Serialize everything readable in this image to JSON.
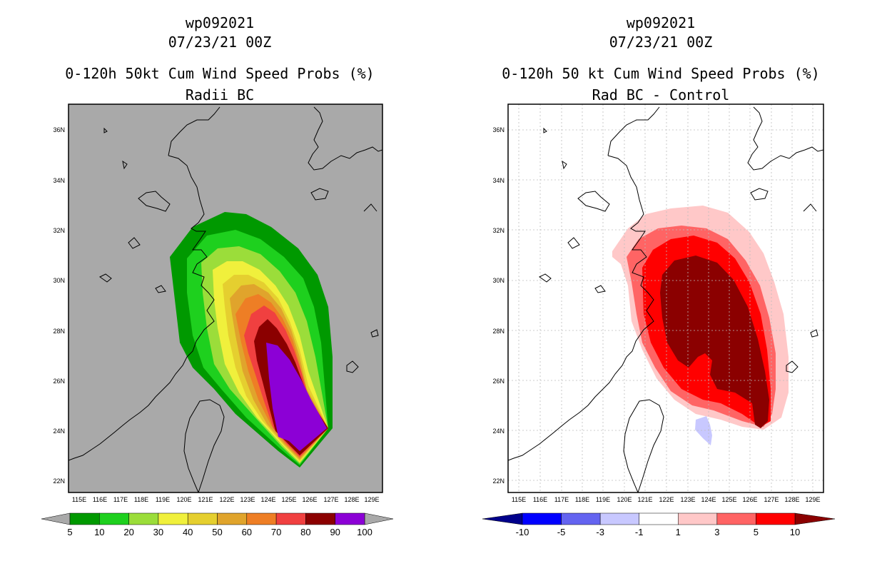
{
  "left_panel": {
    "title_lines": [
      "wp092021",
      "07/23/21 00Z",
      "0-120h 50kt Cum Wind Speed Probs (%)",
      "Radii BC"
    ],
    "lat_labels": [
      "36N",
      "34N",
      "32N",
      "30N",
      "28N",
      "26N",
      "24N",
      "22N"
    ],
    "lon_labels": [
      "115E",
      "116E",
      "117E",
      "118E",
      "119E",
      "120E",
      "121E",
      "122E",
      "123E",
      "124E",
      "125E",
      "126E",
      "127E",
      "128E",
      "129E"
    ],
    "colorbar": {
      "colors": [
        "#009900",
        "#1ED01E",
        "#9BDD3A",
        "#F0F03C",
        "#E5CF2F",
        "#E0A42C",
        "#EE7E25",
        "#F04040",
        "#8B0000",
        "#8C00D6"
      ],
      "labels": [
        "5",
        "10",
        "20",
        "30",
        "40",
        "50",
        "60",
        "70",
        "80",
        "90",
        "100"
      ],
      "left_extend_color": "#a9a9a9",
      "right_extend_color": "#a9a9a9"
    },
    "background_color": "#a9a9a9"
  },
  "right_panel": {
    "title_lines": [
      "wp092021",
      "07/23/21 00Z",
      "0-120h 50 kt Cum Wind Speed Probs (%)",
      "Rad BC - Control"
    ],
    "lat_labels": [
      "36N",
      "34N",
      "32N",
      "30N",
      "28N",
      "26N",
      "24N",
      "22N"
    ],
    "lon_labels": [
      "115E",
      "116E",
      "117E",
      "118E",
      "119E",
      "120E",
      "121E",
      "122E",
      "123E",
      "124E",
      "125E",
      "126E",
      "127E",
      "128E",
      "129E"
    ],
    "colorbar": {
      "colors": [
        "#0000FF",
        "#6464F0",
        "#C8C8FF",
        "#FFFFFF",
        "#FFC8C8",
        "#FF6464",
        "#FF0000"
      ],
      "labels": [
        "-10",
        "-5",
        "-3",
        "-1",
        "1",
        "3",
        "5",
        "10"
      ],
      "left_extend_color": "#00008B",
      "right_extend_color": "#8B0000"
    },
    "background_color": "#ffffff"
  }
}
